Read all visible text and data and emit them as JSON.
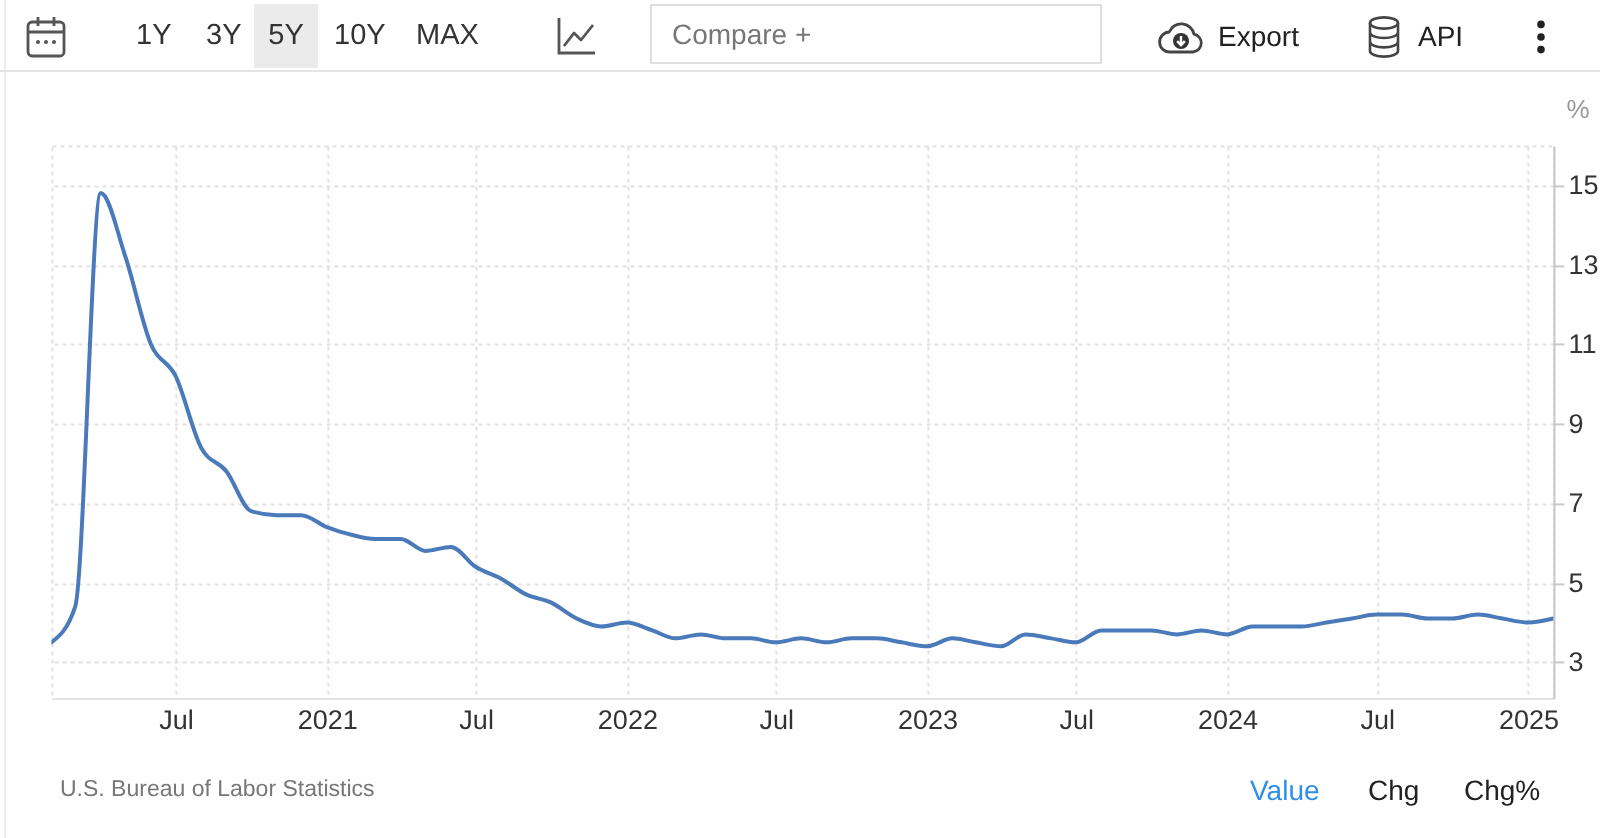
{
  "chart_data": {
    "type": "line",
    "ylabel": "%",
    "x": [
      "2020-02",
      "2020-03",
      "2020-04",
      "2020-05",
      "2020-06",
      "2020-07",
      "2020-08",
      "2020-09",
      "2020-10",
      "2020-11",
      "2020-12",
      "2021-01",
      "2021-02",
      "2021-03",
      "2021-04",
      "2021-05",
      "2021-06",
      "2021-07",
      "2021-08",
      "2021-09",
      "2021-10",
      "2021-11",
      "2021-12",
      "2022-01",
      "2022-02",
      "2022-03",
      "2022-04",
      "2022-05",
      "2022-06",
      "2022-07",
      "2022-08",
      "2022-09",
      "2022-10",
      "2022-11",
      "2022-12",
      "2023-01",
      "2023-02",
      "2023-03",
      "2023-04",
      "2023-05",
      "2023-06",
      "2023-07",
      "2023-08",
      "2023-09",
      "2023-10",
      "2023-11",
      "2023-12",
      "2024-01",
      "2024-02",
      "2024-03",
      "2024-04",
      "2024-05",
      "2024-06",
      "2024-07",
      "2024-08",
      "2024-09",
      "2024-10",
      "2024-11",
      "2024-12",
      "2025-01",
      "2025-02"
    ],
    "values": [
      3.5,
      4.4,
      14.8,
      13.2,
      11.0,
      10.2,
      8.4,
      7.8,
      6.8,
      6.7,
      6.7,
      6.4,
      6.2,
      6.1,
      6.1,
      5.8,
      5.9,
      5.4,
      5.1,
      4.7,
      4.5,
      4.1,
      3.9,
      4.0,
      3.8,
      3.6,
      3.7,
      3.6,
      3.6,
      3.5,
      3.6,
      3.5,
      3.6,
      3.6,
      3.5,
      3.4,
      3.6,
      3.5,
      3.4,
      3.7,
      3.6,
      3.5,
      3.8,
      3.8,
      3.8,
      3.7,
      3.8,
      3.7,
      3.9,
      3.9,
      3.9,
      4.0,
      4.1,
      4.2,
      4.2,
      4.1,
      4.1,
      4.2,
      4.1,
      4.0,
      4.1
    ],
    "color": "#4a7ab9",
    "xlim": [
      "2020-02",
      "2025-02"
    ],
    "xticks": [
      {
        "value": "2020-07",
        "label": "Jul"
      },
      "2021",
      {
        "value": "2021-07",
        "label": "Jul"
      },
      "2022",
      {
        "value": "2022-07",
        "label": "Jul"
      },
      "2023",
      {
        "value": "2023-07",
        "label": "Jul"
      },
      "2024",
      {
        "value": "2024-07",
        "label": "Jul"
      },
      "2025"
    ],
    "ylim": [
      2.1,
      16
    ],
    "yticks": [
      3,
      5,
      7,
      9,
      11,
      13,
      15
    ],
    "grid": true,
    "annotations": [
      "1Y",
      "3Y",
      "5Y",
      "10Y",
      "MAX",
      "Compare +",
      "Export",
      "API",
      "U.S. Bureau of Labor Statistics",
      "Value",
      "Chg",
      "Chg%"
    ]
  }
}
